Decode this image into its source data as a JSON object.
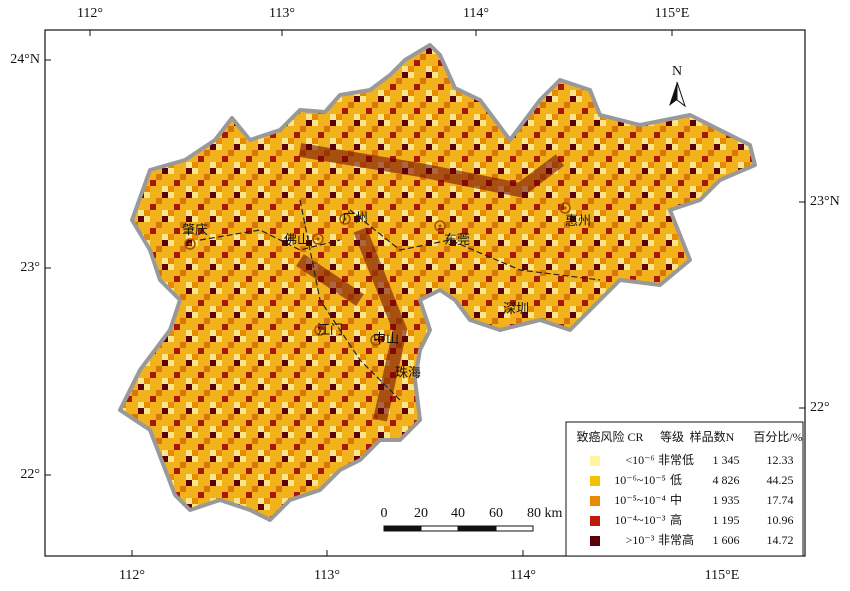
{
  "map": {
    "top_ticks": [
      "112°",
      "113°",
      "114°",
      "115°E"
    ],
    "bottom_ticks": [
      "112°",
      "113°",
      "114°",
      "115°E"
    ],
    "left_ticks": [
      "24°N",
      "23°",
      "22°"
    ],
    "right_ticks": [
      "23°N",
      "22°"
    ],
    "north": "N",
    "cities": [
      "肇庆",
      "佛山",
      "广州",
      "东莞",
      "惠州",
      "江门",
      "中山",
      "深圳",
      "珠海"
    ],
    "scale": [
      "0",
      "20",
      "40",
      "60",
      "80 km"
    ]
  },
  "legend": {
    "header": [
      "致癌风险 CR",
      "等级",
      "样品数N",
      "百分比/%"
    ],
    "rows": [
      [
        "<10⁻⁶",
        "非常低",
        "1 345",
        "12.33"
      ],
      [
        "10⁻⁶~10⁻⁵",
        "低",
        "4 826",
        "44.25"
      ],
      [
        "10⁻⁵~10⁻⁴",
        "中",
        "1 935",
        "17.74"
      ],
      [
        "10⁻⁴~10⁻³",
        "高",
        "1 195",
        "10.96"
      ],
      [
        ">10⁻³",
        "非常高",
        "1 606",
        "14.72"
      ]
    ]
  }
}
